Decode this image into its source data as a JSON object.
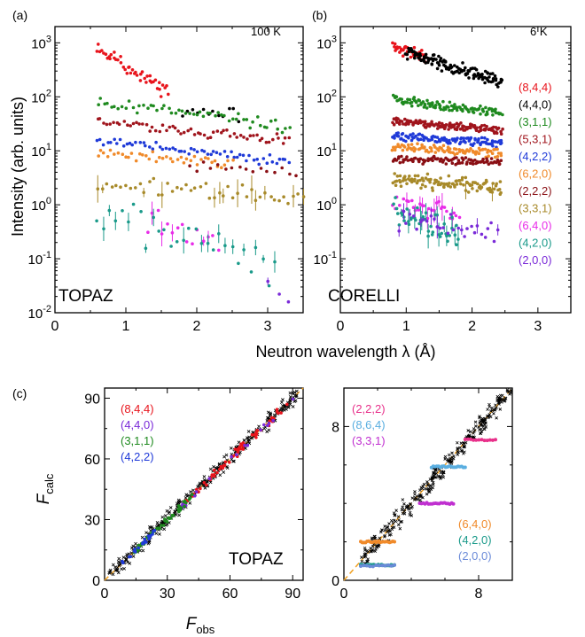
{
  "figure": {
    "xlabel_top": "Neutron wavelength λ (Å)",
    "ylabel_top": "Intensity (arb. units)",
    "xlabel_c_main": "F",
    "xlabel_c_sub": "obs",
    "ylabel_c_main": "F",
    "ylabel_c_sub": "calc"
  },
  "chart_data": [
    {
      "id": "a",
      "type": "scatter",
      "panel_label": "(a)",
      "annotation_corner": "100 K",
      "annotation_bottom": "TOPAZ",
      "xlim": [
        0,
        3.5
      ],
      "ylim": [
        0.01,
        2000
      ],
      "yscale": "log",
      "xticks": [
        0,
        1,
        2,
        3
      ],
      "ytick_labels": [
        "10-2",
        "10-1",
        "100",
        "101",
        "102",
        "103"
      ],
      "series": [
        {
          "color": "#e8141c",
          "x": [
            0.6,
            1.6
          ],
          "y": [
            800,
            120
          ],
          "scatter": 0.08,
          "n": 45
        },
        {
          "color": "#000000",
          "x": [
            1.8,
            2.6
          ],
          "y": [
            55,
            40
          ],
          "scatter": 0.1,
          "n": 12
        },
        {
          "color": "#1f8a1f",
          "x": [
            0.6,
            3.3
          ],
          "y": [
            80,
            28
          ],
          "scatter": 0.07,
          "n": 55
        },
        {
          "color": "#a0141c",
          "x": [
            0.6,
            3.3
          ],
          "y": [
            34,
            15
          ],
          "scatter": 0.06,
          "n": 60
        },
        {
          "color": "#1f3ad8",
          "x": [
            0.6,
            3.3
          ],
          "y": [
            15,
            6
          ],
          "scatter": 0.06,
          "n": 60
        },
        {
          "color": "#f08a2a",
          "x": [
            0.6,
            2.5
          ],
          "y": [
            9,
            6
          ],
          "scatter": 0.07,
          "n": 40
        },
        {
          "color": "#8a0f14",
          "x": [
            1.9,
            3.4
          ],
          "y": [
            5,
            4
          ],
          "scatter": 0.07,
          "n": 16
        },
        {
          "color": "#a88a2a",
          "x": [
            0.6,
            3.5
          ],
          "y": [
            2.5,
            1.3
          ],
          "scatter": 0.09,
          "n": 45
        },
        {
          "color": "#e82ce8",
          "x": [
            1.3,
            2.3
          ],
          "y": [
            0.45,
            0.25
          ],
          "scatter": 0.15,
          "n": 15
        },
        {
          "color": "#1a9a8a",
          "x": [
            0.6,
            3.1
          ],
          "y": [
            0.7,
            0.06
          ],
          "scatter": 0.22,
          "n": 30
        },
        {
          "color": "#7a2ad8",
          "x": [
            3.0,
            3.3
          ],
          "y": [
            0.03,
            0.02
          ],
          "scatter": 0.1,
          "n": 3
        }
      ]
    },
    {
      "id": "b",
      "type": "scatter",
      "panel_label": "(b)",
      "annotation_corner": "6 K",
      "annotation_bottom": "CORELLI",
      "xlim": [
        0,
        3.5
      ],
      "ylim": [
        0.01,
        2000
      ],
      "yscale": "log",
      "xticks": [
        0,
        1,
        2,
        3
      ],
      "ytick_labels": [
        "10-1",
        "100",
        "101",
        "102",
        "103"
      ],
      "legend_position": "right",
      "legend": [
        {
          "label": "(8,4,4)",
          "color": "#e8141c"
        },
        {
          "label": "(4,4,0)",
          "color": "#000000"
        },
        {
          "label": "(3,1,1)",
          "color": "#1f8a1f"
        },
        {
          "label": "(5,3,1)",
          "color": "#a0141c"
        },
        {
          "label": "(4,2,2)",
          "color": "#1f3ad8"
        },
        {
          "label": "(6,2,0)",
          "color": "#f08a2a"
        },
        {
          "label": "(2,2,2)",
          "color": "#8a0f14"
        },
        {
          "label": "(3,3,1)",
          "color": "#a88a2a"
        },
        {
          "label": "(6,4,0)",
          "color": "#e82ce8"
        },
        {
          "label": "(4,2,0)",
          "color": "#1a9a8a"
        },
        {
          "label": "(2,0,0)",
          "color": "#7a2ad8"
        }
      ],
      "series": [
        {
          "color": "#e8141c",
          "x": [
            0.8,
            1.3
          ],
          "y": [
            850,
            550
          ],
          "scatter": 0.06,
          "n": 40
        },
        {
          "color": "#000000",
          "x": [
            1.0,
            2.45
          ],
          "y": [
            650,
            190
          ],
          "scatter": 0.07,
          "n": 130
        },
        {
          "color": "#1f8a1f",
          "x": [
            0.8,
            2.45
          ],
          "y": [
            90,
            50
          ],
          "scatter": 0.05,
          "n": 110
        },
        {
          "color": "#a0141c",
          "x": [
            0.8,
            2.45
          ],
          "y": [
            36,
            24
          ],
          "scatter": 0.04,
          "n": 130
        },
        {
          "color": "#1f3ad8",
          "x": [
            0.8,
            2.45
          ],
          "y": [
            18,
            14
          ],
          "scatter": 0.05,
          "n": 110
        },
        {
          "color": "#f08a2a",
          "x": [
            0.8,
            2.45
          ],
          "y": [
            12,
            9
          ],
          "scatter": 0.05,
          "n": 90
        },
        {
          "color": "#8a0f14",
          "x": [
            0.8,
            2.45
          ],
          "y": [
            7,
            6
          ],
          "scatter": 0.05,
          "n": 90
        },
        {
          "color": "#a88a2a",
          "x": [
            0.8,
            2.45
          ],
          "y": [
            3,
            2
          ],
          "scatter": 0.08,
          "n": 110
        },
        {
          "color": "#e82ce8",
          "x": [
            0.8,
            1.8
          ],
          "y": [
            1.1,
            0.7
          ],
          "scatter": 0.1,
          "n": 30
        },
        {
          "color": "#1a9a8a",
          "x": [
            0.8,
            1.8
          ],
          "y": [
            0.8,
            0.25
          ],
          "scatter": 0.18,
          "n": 45
        },
        {
          "color": "#7a2ad8",
          "x": [
            0.9,
            2.4
          ],
          "y": [
            0.6,
            0.25
          ],
          "scatter": 0.15,
          "n": 30
        }
      ]
    },
    {
      "id": "c-left",
      "type": "scatter",
      "panel_label": "(c)",
      "annotation_bottom": "TOPAZ",
      "xlim": [
        0,
        95
      ],
      "ylim": [
        0,
        95
      ],
      "xticks": [
        0,
        30,
        60,
        90
      ],
      "yticks": [
        0,
        30,
        60,
        90
      ],
      "reference_line": {
        "slope": 1,
        "color": "#f0a020"
      },
      "legend_position": "top-left",
      "legend": [
        {
          "label": "(8,4,4)",
          "color": "#e8141c"
        },
        {
          "label": "(4,4,0)",
          "color": "#7a2ad8"
        },
        {
          "label": "(3,1,1)",
          "color": "#1f8a1f"
        },
        {
          "label": "(4,2,2)",
          "color": "#1f3ad8"
        }
      ],
      "series": [
        {
          "color": "#000000",
          "marker": "x",
          "x": [
            2,
            92
          ],
          "spread": 2.5,
          "n": 320
        },
        {
          "color": "#e8141c",
          "x": [
            38,
            88
          ],
          "spread": 1.2,
          "n": 60
        },
        {
          "color": "#7a2ad8",
          "x": [
            28,
            92
          ],
          "spread": 1.2,
          "n": 18
        },
        {
          "color": "#1f8a1f",
          "x": [
            14,
            42
          ],
          "spread": 1.0,
          "n": 50
        },
        {
          "color": "#1f3ad8",
          "x": [
            7,
            24
          ],
          "spread": 0.8,
          "n": 25
        }
      ]
    },
    {
      "id": "c-right",
      "type": "scatter",
      "xlim": [
        0,
        10
      ],
      "ylim": [
        0,
        10
      ],
      "xticks": [
        0,
        8
      ],
      "yticks": [
        0,
        8
      ],
      "reference_line": {
        "slope": 1,
        "color": "#f0a020"
      },
      "legend_top": [
        {
          "label": "(2,2,2)",
          "color": "#e8308a"
        },
        {
          "label": "(8,6,4)",
          "color": "#5aaee0"
        },
        {
          "label": "(3,3,1)",
          "color": "#c030d0"
        }
      ],
      "legend_bottom": [
        {
          "label": "(6,4,0)",
          "color": "#f08a2a"
        },
        {
          "label": "(4,2,0)",
          "color": "#1a9a8a"
        },
        {
          "label": "(2,0,0)",
          "color": "#6a8ad8"
        }
      ],
      "series": [
        {
          "color": "#000000",
          "marker": "x",
          "x": [
            1.0,
            10.0
          ],
          "spread": 0.55,
          "n": 330
        },
        {
          "color": "#f08a2a",
          "segment": true,
          "x": [
            1.0,
            3.0
          ],
          "y": 2.0,
          "n": 22
        },
        {
          "color": "#1a9a8a",
          "segment": true,
          "x": [
            1.0,
            3.0
          ],
          "y": 0.8,
          "n": 22
        },
        {
          "color": "#6a8ad8",
          "segment": true,
          "x": [
            1.0,
            3.0
          ],
          "y": 0.75,
          "n": 12
        },
        {
          "color": "#c030d0",
          "segment": true,
          "x": [
            4.5,
            6.5
          ],
          "y": 4.0,
          "n": 20
        },
        {
          "color": "#5aaee0",
          "segment": true,
          "x": [
            5.2,
            7.2
          ],
          "y": 5.9,
          "n": 20
        },
        {
          "color": "#e8308a",
          "segment": true,
          "x": [
            7.2,
            9.0
          ],
          "y": 7.3,
          "n": 12
        }
      ]
    }
  ]
}
